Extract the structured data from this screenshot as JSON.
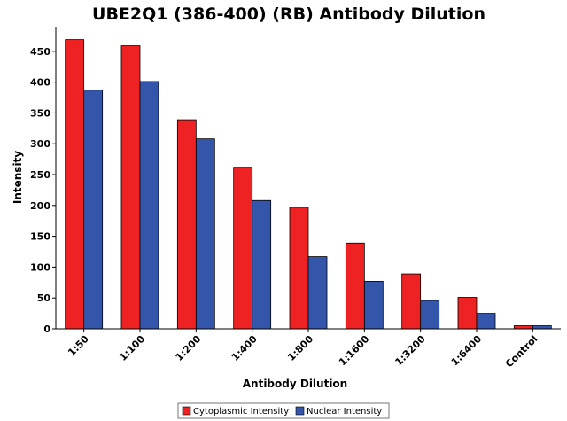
{
  "chart_data": {
    "type": "bar",
    "title": "UBE2Q1 (386-400) (RB) Antibody Dilution",
    "xlabel": "Antibody Dilution",
    "ylabel": "Intensity",
    "ylim": [
      0,
      490
    ],
    "yticks": [
      0,
      50,
      100,
      150,
      200,
      250,
      300,
      350,
      400,
      450
    ],
    "categories": [
      "1:50",
      "1:100",
      "1:200",
      "1:400",
      "1:800",
      "1:1600",
      "1:3200",
      "1:6400",
      "Control"
    ],
    "series": [
      {
        "name": "Cytoplasmic Intensity",
        "color": "#ee2222",
        "values": [
          469,
          459,
          339,
          262,
          197,
          139,
          89,
          51,
          5
        ]
      },
      {
        "name": "Nuclear Intensity",
        "color": "#3355aa",
        "values": [
          387,
          401,
          308,
          208,
          117,
          77,
          46,
          25,
          5
        ]
      }
    ],
    "grid": false,
    "legend": "bottom-center"
  }
}
